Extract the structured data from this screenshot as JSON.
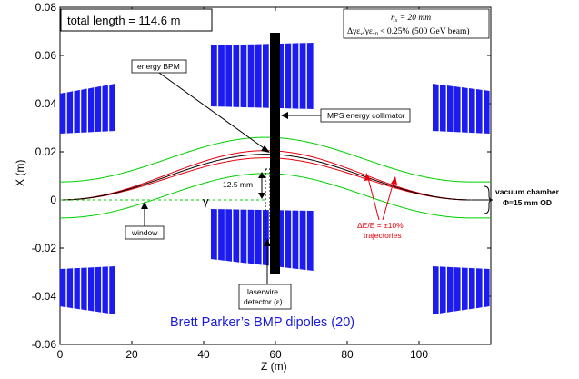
{
  "axes": {
    "x_label": "Z (m)",
    "y_label": "X (m)",
    "x_ticks": [
      "0",
      "20",
      "40",
      "60",
      "80",
      "100"
    ],
    "y_ticks": [
      "-0.06",
      "-0.04",
      "-0.02",
      "0",
      "0.02",
      "0.04",
      "0.06",
      "0.08"
    ],
    "x_range": [
      0,
      120
    ],
    "y_range": [
      -0.06,
      0.08
    ]
  },
  "annotations": {
    "total_length": "total length = 114.6 m",
    "formula_line1": "η",
    "formula_line1_sub": "x",
    "formula_line1_rest": " = 20 mm",
    "formula_line2": "Δγε",
    "formula_line2_sub1": "x",
    "formula_line2_mid": "/γε",
    "formula_line2_sub2": "x0",
    "formula_line2_rest": " < 0.25% (500 GeV beam)",
    "energy_bpm": "energy BPM",
    "mps_collimator": "MPS energy collimator",
    "gap": "12.5 mm",
    "gamma": "γ",
    "window": "window",
    "laserwire_line1": "laserwire",
    "laserwire_line2": "detector (ε)",
    "vacuum_line1": "vacuum chamber",
    "vacuum_line2": "Φ=15 mm OD",
    "trajectories_line1": "ΔE/E = ±10%",
    "trajectories_line2": "trajectories",
    "dipoles": "Brett Parker’s BMP dipoles (20)"
  },
  "colors": {
    "chamber": "#00d000",
    "trajectory_red": "#e8000b",
    "magnet": "#1c1cf0",
    "dipole_text": "#1a1adc"
  }
}
